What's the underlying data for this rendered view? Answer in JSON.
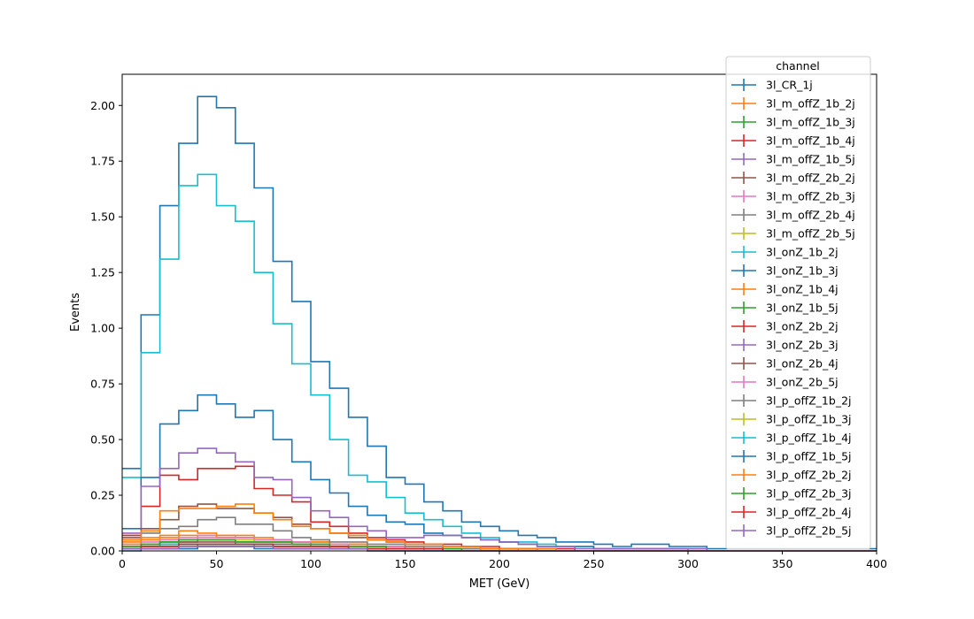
{
  "chart_data": {
    "type": "line",
    "xlabel": "MET (GeV)",
    "ylabel": "Events",
    "xlim": [
      0,
      400
    ],
    "ylim": [
      0,
      2.14
    ],
    "grid": false,
    "legend_placement": "top-right",
    "legend_title": "channel",
    "bin_edges": [
      0,
      10,
      20,
      30,
      40,
      50,
      60,
      70,
      80,
      90,
      100,
      110,
      120,
      130,
      140,
      150,
      160,
      170,
      180,
      190,
      200,
      210,
      220,
      230,
      240,
      250,
      260,
      270,
      280,
      290,
      300,
      310,
      320,
      330,
      340,
      350,
      360,
      370,
      380,
      390,
      400
    ],
    "x_ticks": [
      "0",
      "50",
      "100",
      "150",
      "200",
      "250",
      "300",
      "350",
      "400"
    ],
    "x_tick_values": [
      0,
      50,
      100,
      150,
      200,
      250,
      300,
      350,
      400
    ],
    "y_ticks": [
      "0.00",
      "0.25",
      "0.50",
      "0.75",
      "1.00",
      "1.25",
      "1.50",
      "1.75",
      "2.00"
    ],
    "y_tick_values": [
      0,
      0.25,
      0.5,
      0.75,
      1.0,
      1.25,
      1.5,
      1.75,
      2.0
    ],
    "series": [
      {
        "name": "3l_CR_1j",
        "color": "#1f77b4",
        "values": [
          0.37,
          1.06,
          1.55,
          1.83,
          2.04,
          1.99,
          1.83,
          1.63,
          1.3,
          1.12,
          0.85,
          0.73,
          0.6,
          0.47,
          0.33,
          0.3,
          0.22,
          0.18,
          0.13,
          0.11,
          0.09,
          0.07,
          0.06,
          0.04,
          0.04,
          0.03,
          0.02,
          0.03,
          0.03,
          0.02,
          0.02,
          0.01,
          0.01,
          0.01,
          0.01,
          0.01,
          0.01,
          0.01,
          0.01,
          0.01
        ]
      },
      {
        "name": "3l_m_offZ_1b_2j",
        "color": "#ff7f0e",
        "values": [
          0.04,
          0.06,
          0.06,
          0.07,
          0.07,
          0.06,
          0.06,
          0.05,
          0.05,
          0.04,
          0.04,
          0.03,
          0.03,
          0.02,
          0.02,
          0.02,
          0.01,
          0.01,
          0.01,
          0.01,
          0.01,
          0.01,
          0.0,
          0.0,
          0.0,
          0.0,
          0.0,
          0.0,
          0.0,
          0.0,
          0.0,
          0.0,
          0.0,
          0.0,
          0.0,
          0.0,
          0.0,
          0.0,
          0.0,
          0.0
        ]
      },
      {
        "name": "3l_m_offZ_1b_3j",
        "color": "#2ca02c",
        "values": [
          0.02,
          0.03,
          0.04,
          0.04,
          0.05,
          0.05,
          0.04,
          0.04,
          0.04,
          0.03,
          0.03,
          0.02,
          0.02,
          0.02,
          0.01,
          0.01,
          0.01,
          0.01,
          0.01,
          0.01,
          0.0,
          0.0,
          0.0,
          0.0,
          0.0,
          0.0,
          0.0,
          0.0,
          0.0,
          0.0,
          0.0,
          0.0,
          0.0,
          0.0,
          0.0,
          0.0,
          0.0,
          0.0,
          0.0,
          0.0
        ]
      },
      {
        "name": "3l_m_offZ_1b_4j",
        "color": "#d62728",
        "values": [
          0.01,
          0.02,
          0.02,
          0.02,
          0.03,
          0.03,
          0.03,
          0.03,
          0.02,
          0.02,
          0.02,
          0.02,
          0.01,
          0.01,
          0.01,
          0.01,
          0.01,
          0.0,
          0.0,
          0.0,
          0.0,
          0.0,
          0.0,
          0.0,
          0.0,
          0.0,
          0.0,
          0.0,
          0.0,
          0.0,
          0.0,
          0.0,
          0.0,
          0.0,
          0.0,
          0.0,
          0.0,
          0.0,
          0.0,
          0.0
        ]
      },
      {
        "name": "3l_m_offZ_1b_5j",
        "color": "#9467bd",
        "values": [
          0.01,
          0.01,
          0.01,
          0.01,
          0.02,
          0.02,
          0.02,
          0.02,
          0.01,
          0.01,
          0.01,
          0.01,
          0.01,
          0.01,
          0.0,
          0.0,
          0.0,
          0.0,
          0.0,
          0.0,
          0.0,
          0.0,
          0.0,
          0.0,
          0.0,
          0.0,
          0.0,
          0.0,
          0.0,
          0.0,
          0.0,
          0.0,
          0.0,
          0.0,
          0.0,
          0.0,
          0.0,
          0.0,
          0.0,
          0.0
        ]
      },
      {
        "name": "3l_m_offZ_2b_2j",
        "color": "#8c564b",
        "values": [
          0.02,
          0.03,
          0.03,
          0.04,
          0.04,
          0.04,
          0.03,
          0.03,
          0.03,
          0.03,
          0.02,
          0.02,
          0.02,
          0.01,
          0.01,
          0.01,
          0.01,
          0.01,
          0.0,
          0.0,
          0.0,
          0.0,
          0.0,
          0.0,
          0.0,
          0.0,
          0.0,
          0.0,
          0.0,
          0.0,
          0.0,
          0.0,
          0.0,
          0.0,
          0.0,
          0.0,
          0.0,
          0.0,
          0.0,
          0.0
        ]
      },
      {
        "name": "3l_m_offZ_2b_3j",
        "color": "#e377c2",
        "values": [
          0.03,
          0.04,
          0.05,
          0.06,
          0.07,
          0.07,
          0.06,
          0.05,
          0.05,
          0.04,
          0.03,
          0.03,
          0.02,
          0.02,
          0.02,
          0.01,
          0.01,
          0.01,
          0.01,
          0.01,
          0.0,
          0.0,
          0.0,
          0.0,
          0.0,
          0.0,
          0.0,
          0.0,
          0.0,
          0.0,
          0.0,
          0.0,
          0.0,
          0.0,
          0.0,
          0.0,
          0.0,
          0.0,
          0.0,
          0.0
        ]
      },
      {
        "name": "3l_m_offZ_2b_4j",
        "color": "#7f7f7f",
        "values": [
          0.01,
          0.02,
          0.02,
          0.03,
          0.03,
          0.03,
          0.03,
          0.02,
          0.02,
          0.02,
          0.02,
          0.01,
          0.01,
          0.01,
          0.01,
          0.01,
          0.0,
          0.0,
          0.0,
          0.0,
          0.0,
          0.0,
          0.0,
          0.0,
          0.0,
          0.0,
          0.0,
          0.0,
          0.0,
          0.0,
          0.0,
          0.0,
          0.0,
          0.0,
          0.0,
          0.0,
          0.0,
          0.0,
          0.0,
          0.0
        ]
      },
      {
        "name": "3l_m_offZ_2b_5j",
        "color": "#bcbd22",
        "values": [
          0.01,
          0.01,
          0.01,
          0.02,
          0.02,
          0.02,
          0.02,
          0.02,
          0.01,
          0.01,
          0.01,
          0.01,
          0.01,
          0.0,
          0.0,
          0.0,
          0.0,
          0.0,
          0.0,
          0.0,
          0.0,
          0.0,
          0.0,
          0.0,
          0.0,
          0.0,
          0.0,
          0.0,
          0.0,
          0.0,
          0.0,
          0.0,
          0.0,
          0.0,
          0.0,
          0.0,
          0.0,
          0.0,
          0.0,
          0.0
        ]
      },
      {
        "name": "3l_onZ_1b_2j",
        "color": "#17becf",
        "values": [
          0.33,
          0.89,
          1.31,
          1.64,
          1.69,
          1.55,
          1.48,
          1.25,
          1.02,
          0.84,
          0.7,
          0.5,
          0.34,
          0.31,
          0.24,
          0.17,
          0.14,
          0.11,
          0.08,
          0.06,
          0.04,
          0.04,
          0.03,
          0.02,
          0.02,
          0.01,
          0.01,
          0.01,
          0.01,
          0.01,
          0.0,
          0.0,
          0.0,
          0.0,
          0.0,
          0.0,
          0.0,
          0.0,
          0.0,
          0.0
        ]
      },
      {
        "name": "3l_onZ_1b_3j",
        "color": "#1f77b4",
        "values": [
          0.1,
          0.33,
          0.57,
          0.63,
          0.7,
          0.66,
          0.6,
          0.63,
          0.5,
          0.4,
          0.32,
          0.26,
          0.2,
          0.16,
          0.13,
          0.12,
          0.08,
          0.07,
          0.06,
          0.05,
          0.04,
          0.03,
          0.02,
          0.02,
          0.02,
          0.01,
          0.01,
          0.01,
          0.01,
          0.01,
          0.01,
          0.0,
          0.0,
          0.0,
          0.0,
          0.0,
          0.0,
          0.0,
          0.0,
          0.0
        ]
      },
      {
        "name": "3l_onZ_1b_4j",
        "color": "#ff7f0e",
        "values": [
          0.03,
          0.05,
          0.07,
          0.09,
          0.08,
          0.07,
          0.07,
          0.06,
          0.05,
          0.04,
          0.04,
          0.03,
          0.03,
          0.02,
          0.02,
          0.01,
          0.01,
          0.01,
          0.01,
          0.01,
          0.01,
          0.0,
          0.0,
          0.0,
          0.0,
          0.0,
          0.0,
          0.0,
          0.0,
          0.0,
          0.0,
          0.0,
          0.0,
          0.0,
          0.0,
          0.0,
          0.0,
          0.0,
          0.0,
          0.0
        ]
      },
      {
        "name": "3l_onZ_1b_5j",
        "color": "#2ca02c",
        "values": [
          0.01,
          0.02,
          0.03,
          0.03,
          0.03,
          0.03,
          0.03,
          0.03,
          0.02,
          0.02,
          0.02,
          0.01,
          0.01,
          0.01,
          0.01,
          0.01,
          0.01,
          0.0,
          0.0,
          0.0,
          0.0,
          0.0,
          0.0,
          0.0,
          0.0,
          0.0,
          0.0,
          0.0,
          0.0,
          0.0,
          0.0,
          0.0,
          0.0,
          0.0,
          0.0,
          0.0,
          0.0,
          0.0,
          0.0,
          0.0
        ]
      },
      {
        "name": "3l_onZ_2b_2j",
        "color": "#d62728",
        "values": [
          0.07,
          0.2,
          0.34,
          0.32,
          0.37,
          0.37,
          0.38,
          0.28,
          0.25,
          0.22,
          0.13,
          0.11,
          0.08,
          0.06,
          0.05,
          0.04,
          0.03,
          0.03,
          0.02,
          0.02,
          0.01,
          0.01,
          0.01,
          0.01,
          0.0,
          0.0,
          0.0,
          0.0,
          0.0,
          0.0,
          0.0,
          0.0,
          0.0,
          0.0,
          0.0,
          0.0,
          0.0,
          0.0,
          0.0,
          0.0
        ]
      },
      {
        "name": "3l_onZ_2b_3j",
        "color": "#9467bd",
        "values": [
          0.08,
          0.29,
          0.37,
          0.44,
          0.46,
          0.44,
          0.4,
          0.33,
          0.32,
          0.24,
          0.18,
          0.15,
          0.11,
          0.09,
          0.06,
          0.06,
          0.07,
          0.07,
          0.06,
          0.05,
          0.04,
          0.03,
          0.02,
          0.02,
          0.01,
          0.01,
          0.01,
          0.01,
          0.01,
          0.01,
          0.01,
          0.0,
          0.0,
          0.0,
          0.0,
          0.0,
          0.0,
          0.0,
          0.0,
          0.0
        ]
      },
      {
        "name": "3l_onZ_2b_4j",
        "color": "#8c564b",
        "values": [
          0.06,
          0.1,
          0.14,
          0.2,
          0.21,
          0.19,
          0.19,
          0.17,
          0.15,
          0.12,
          0.1,
          0.08,
          0.06,
          0.05,
          0.04,
          0.03,
          0.03,
          0.02,
          0.02,
          0.01,
          0.01,
          0.01,
          0.01,
          0.0,
          0.0,
          0.0,
          0.0,
          0.0,
          0.0,
          0.0,
          0.0,
          0.0,
          0.0,
          0.0,
          0.0,
          0.0,
          0.0,
          0.0,
          0.0,
          0.0
        ]
      },
      {
        "name": "3l_onZ_2b_5j",
        "color": "#e377c2",
        "values": [
          0.02,
          0.03,
          0.05,
          0.05,
          0.06,
          0.06,
          0.06,
          0.05,
          0.05,
          0.04,
          0.03,
          0.03,
          0.02,
          0.02,
          0.02,
          0.01,
          0.01,
          0.01,
          0.01,
          0.0,
          0.0,
          0.0,
          0.0,
          0.0,
          0.0,
          0.0,
          0.0,
          0.0,
          0.0,
          0.0,
          0.0,
          0.0,
          0.0,
          0.0,
          0.0,
          0.0,
          0.0,
          0.0,
          0.0,
          0.0
        ]
      },
      {
        "name": "3l_p_offZ_1b_2j",
        "color": "#7f7f7f",
        "values": [
          0.05,
          0.08,
          0.1,
          0.11,
          0.14,
          0.15,
          0.12,
          0.12,
          0.09,
          0.06,
          0.05,
          0.04,
          0.04,
          0.03,
          0.03,
          0.02,
          0.02,
          0.01,
          0.01,
          0.01,
          0.01,
          0.01,
          0.0,
          0.0,
          0.0,
          0.0,
          0.0,
          0.0,
          0.0,
          0.0,
          0.0,
          0.0,
          0.0,
          0.0,
          0.0,
          0.0,
          0.0,
          0.0,
          0.0,
          0.0
        ]
      },
      {
        "name": "3l_p_offZ_1b_3j",
        "color": "#bcbd22",
        "values": [
          0.02,
          0.03,
          0.04,
          0.05,
          0.05,
          0.05,
          0.05,
          0.04,
          0.04,
          0.03,
          0.03,
          0.02,
          0.02,
          0.02,
          0.01,
          0.01,
          0.01,
          0.01,
          0.0,
          0.0,
          0.0,
          0.0,
          0.0,
          0.0,
          0.0,
          0.0,
          0.0,
          0.0,
          0.0,
          0.0,
          0.0,
          0.0,
          0.0,
          0.0,
          0.0,
          0.0,
          0.0,
          0.0,
          0.0,
          0.0
        ]
      },
      {
        "name": "3l_p_offZ_1b_4j",
        "color": "#17becf",
        "values": [
          0.01,
          0.02,
          0.03,
          0.03,
          0.03,
          0.03,
          0.03,
          0.03,
          0.02,
          0.02,
          0.02,
          0.01,
          0.01,
          0.01,
          0.01,
          0.01,
          0.0,
          0.0,
          0.0,
          0.0,
          0.0,
          0.0,
          0.0,
          0.0,
          0.0,
          0.0,
          0.0,
          0.0,
          0.0,
          0.0,
          0.0,
          0.0,
          0.0,
          0.0,
          0.0,
          0.0,
          0.0,
          0.0,
          0.0,
          0.0
        ]
      },
      {
        "name": "3l_p_offZ_1b_5j",
        "color": "#1f77b4",
        "values": [
          0.0,
          0.01,
          0.01,
          0.01,
          0.02,
          0.02,
          0.02,
          0.01,
          0.01,
          0.01,
          0.01,
          0.01,
          0.01,
          0.0,
          0.0,
          0.0,
          0.0,
          0.0,
          0.0,
          0.0,
          0.0,
          0.0,
          0.0,
          0.0,
          0.0,
          0.0,
          0.0,
          0.0,
          0.0,
          0.0,
          0.0,
          0.0,
          0.0,
          0.0,
          0.0,
          0.0,
          0.0,
          0.0,
          0.0,
          0.0
        ]
      },
      {
        "name": "3l_p_offZ_2b_2j",
        "color": "#ff7f0e",
        "values": [
          0.05,
          0.09,
          0.18,
          0.19,
          0.19,
          0.2,
          0.21,
          0.17,
          0.14,
          0.11,
          0.1,
          0.08,
          0.07,
          0.05,
          0.04,
          0.03,
          0.03,
          0.02,
          0.02,
          0.01,
          0.01,
          0.01,
          0.01,
          0.0,
          0.0,
          0.0,
          0.0,
          0.0,
          0.0,
          0.0,
          0.0,
          0.0,
          0.0,
          0.0,
          0.0,
          0.0,
          0.0,
          0.0,
          0.0,
          0.0
        ]
      },
      {
        "name": "3l_p_offZ_2b_3j",
        "color": "#2ca02c",
        "values": [
          0.02,
          0.03,
          0.04,
          0.05,
          0.05,
          0.05,
          0.04,
          0.04,
          0.04,
          0.03,
          0.03,
          0.02,
          0.02,
          0.02,
          0.01,
          0.01,
          0.01,
          0.01,
          0.0,
          0.0,
          0.0,
          0.0,
          0.0,
          0.0,
          0.0,
          0.0,
          0.0,
          0.0,
          0.0,
          0.0,
          0.0,
          0.0,
          0.0,
          0.0,
          0.0,
          0.0,
          0.0,
          0.0,
          0.0,
          0.0
        ]
      },
      {
        "name": "3l_p_offZ_2b_4j",
        "color": "#d62728",
        "values": [
          0.01,
          0.02,
          0.02,
          0.03,
          0.03,
          0.03,
          0.03,
          0.03,
          0.02,
          0.02,
          0.02,
          0.02,
          0.01,
          0.01,
          0.01,
          0.01,
          0.01,
          0.0,
          0.0,
          0.0,
          0.0,
          0.0,
          0.0,
          0.0,
          0.0,
          0.0,
          0.0,
          0.0,
          0.0,
          0.0,
          0.0,
          0.0,
          0.0,
          0.0,
          0.0,
          0.0,
          0.0,
          0.0,
          0.0,
          0.0
        ]
      },
      {
        "name": "3l_p_offZ_2b_5j",
        "color": "#9467bd",
        "values": [
          0.01,
          0.01,
          0.01,
          0.02,
          0.02,
          0.02,
          0.02,
          0.02,
          0.01,
          0.01,
          0.01,
          0.01,
          0.01,
          0.0,
          0.0,
          0.0,
          0.0,
          0.0,
          0.0,
          0.0,
          0.0,
          0.0,
          0.0,
          0.0,
          0.0,
          0.0,
          0.0,
          0.0,
          0.0,
          0.0,
          0.0,
          0.0,
          0.0,
          0.0,
          0.0,
          0.0,
          0.0,
          0.0,
          0.0,
          0.0
        ]
      }
    ]
  }
}
